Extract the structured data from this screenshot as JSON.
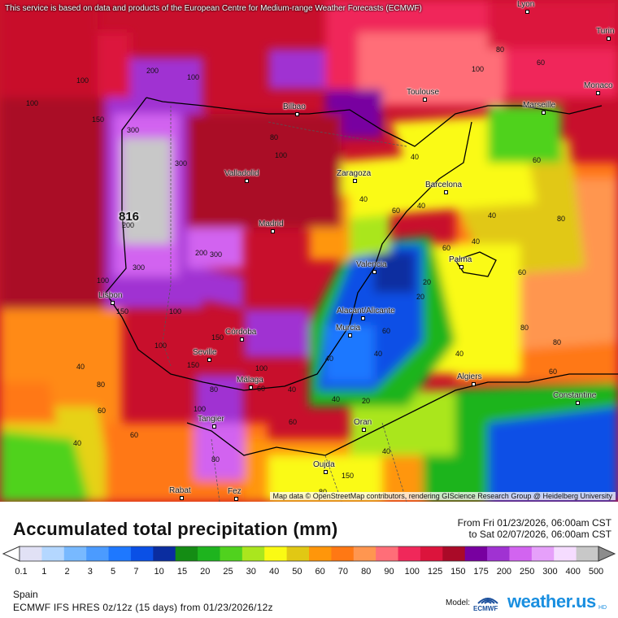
{
  "map": {
    "attribution_top": "This service is based on data and products of the European Centre for Medium-range Weather Forecasts (ECMWF)",
    "attribution_bottom": "Map data © OpenStreetMap contributors, rendering GIScience Research Group @ Heidelberg University",
    "max_value": "816",
    "cities": [
      {
        "name": "Lyon"
      },
      {
        "name": "Turin"
      },
      {
        "name": "Monaco"
      },
      {
        "name": "Toulouse"
      },
      {
        "name": "Marseille"
      },
      {
        "name": "Bilbao"
      },
      {
        "name": "Valladolid"
      },
      {
        "name": "Zaragoza"
      },
      {
        "name": "Barcelona"
      },
      {
        "name": "Madrid"
      },
      {
        "name": "Valencia"
      },
      {
        "name": "Palma"
      },
      {
        "name": "Lisbon"
      },
      {
        "name": "Alacant/Alicante"
      },
      {
        "name": "Murcia"
      },
      {
        "name": "Córdoba"
      },
      {
        "name": "Seville"
      },
      {
        "name": "Málaga"
      },
      {
        "name": "Algiers"
      },
      {
        "name": "Constantine"
      },
      {
        "name": "Tangier"
      },
      {
        "name": "Oran"
      },
      {
        "name": "Oujda"
      },
      {
        "name": "Rabat"
      },
      {
        "name": "Fez"
      }
    ],
    "contour_labels": [
      "100",
      "100",
      "150",
      "200",
      "100",
      "80",
      "100",
      "300",
      "300",
      "200",
      "200",
      "300",
      "300",
      "100",
      "150",
      "100",
      "150",
      "100",
      "80",
      "60",
      "40",
      "40",
      "40",
      "60",
      "40",
      "20",
      "20",
      "40",
      "40",
      "60",
      "80",
      "40",
      "60",
      "80",
      "60",
      "40",
      "20",
      "40",
      "60",
      "80",
      "40",
      "80",
      "60",
      "40",
      "60",
      "100",
      "150",
      "100",
      "80",
      "60",
      "40",
      "150",
      "80",
      "60",
      "40",
      "100",
      "80",
      "60"
    ]
  },
  "title": "Accumulated total precipitation (mm)",
  "period": {
    "from": "From Fri 01/23/2026, 06:00am CST",
    "to": "to Sat 02/07/2026, 06:00am CST"
  },
  "legend": {
    "ticks": [
      "0.1",
      "1",
      "2",
      "3",
      "5",
      "7",
      "10",
      "15",
      "20",
      "25",
      "30",
      "40",
      "50",
      "60",
      "70",
      "80",
      "90",
      "100",
      "125",
      "150",
      "175",
      "200",
      "250",
      "300",
      "400",
      "500"
    ],
    "colors": [
      "#e1e1f5",
      "#b4d7ff",
      "#78b9ff",
      "#4b9bff",
      "#1e78ff",
      "#0a50e6",
      "#0a2da0",
      "#148c14",
      "#1eb41e",
      "#50d21e",
      "#aae61e",
      "#fafa14",
      "#e1c814",
      "#ff960a",
      "#ff7814",
      "#ff9650",
      "#ff6e78",
      "#f0285a",
      "#dc143c",
      "#aa0a28",
      "#7800a0",
      "#a032d2",
      "#d264f0",
      "#e6a0fa",
      "#f5dcff",
      "#c8c8c8"
    ]
  },
  "region": "Spain",
  "model_run": "ECMWF IFS HRES 0z/12z (15 days) from 01/23/2026/12z",
  "model_label": "Model:",
  "ecmwf_text": "ECMWF",
  "brand": "weather.us",
  "brand_sup": "HD"
}
